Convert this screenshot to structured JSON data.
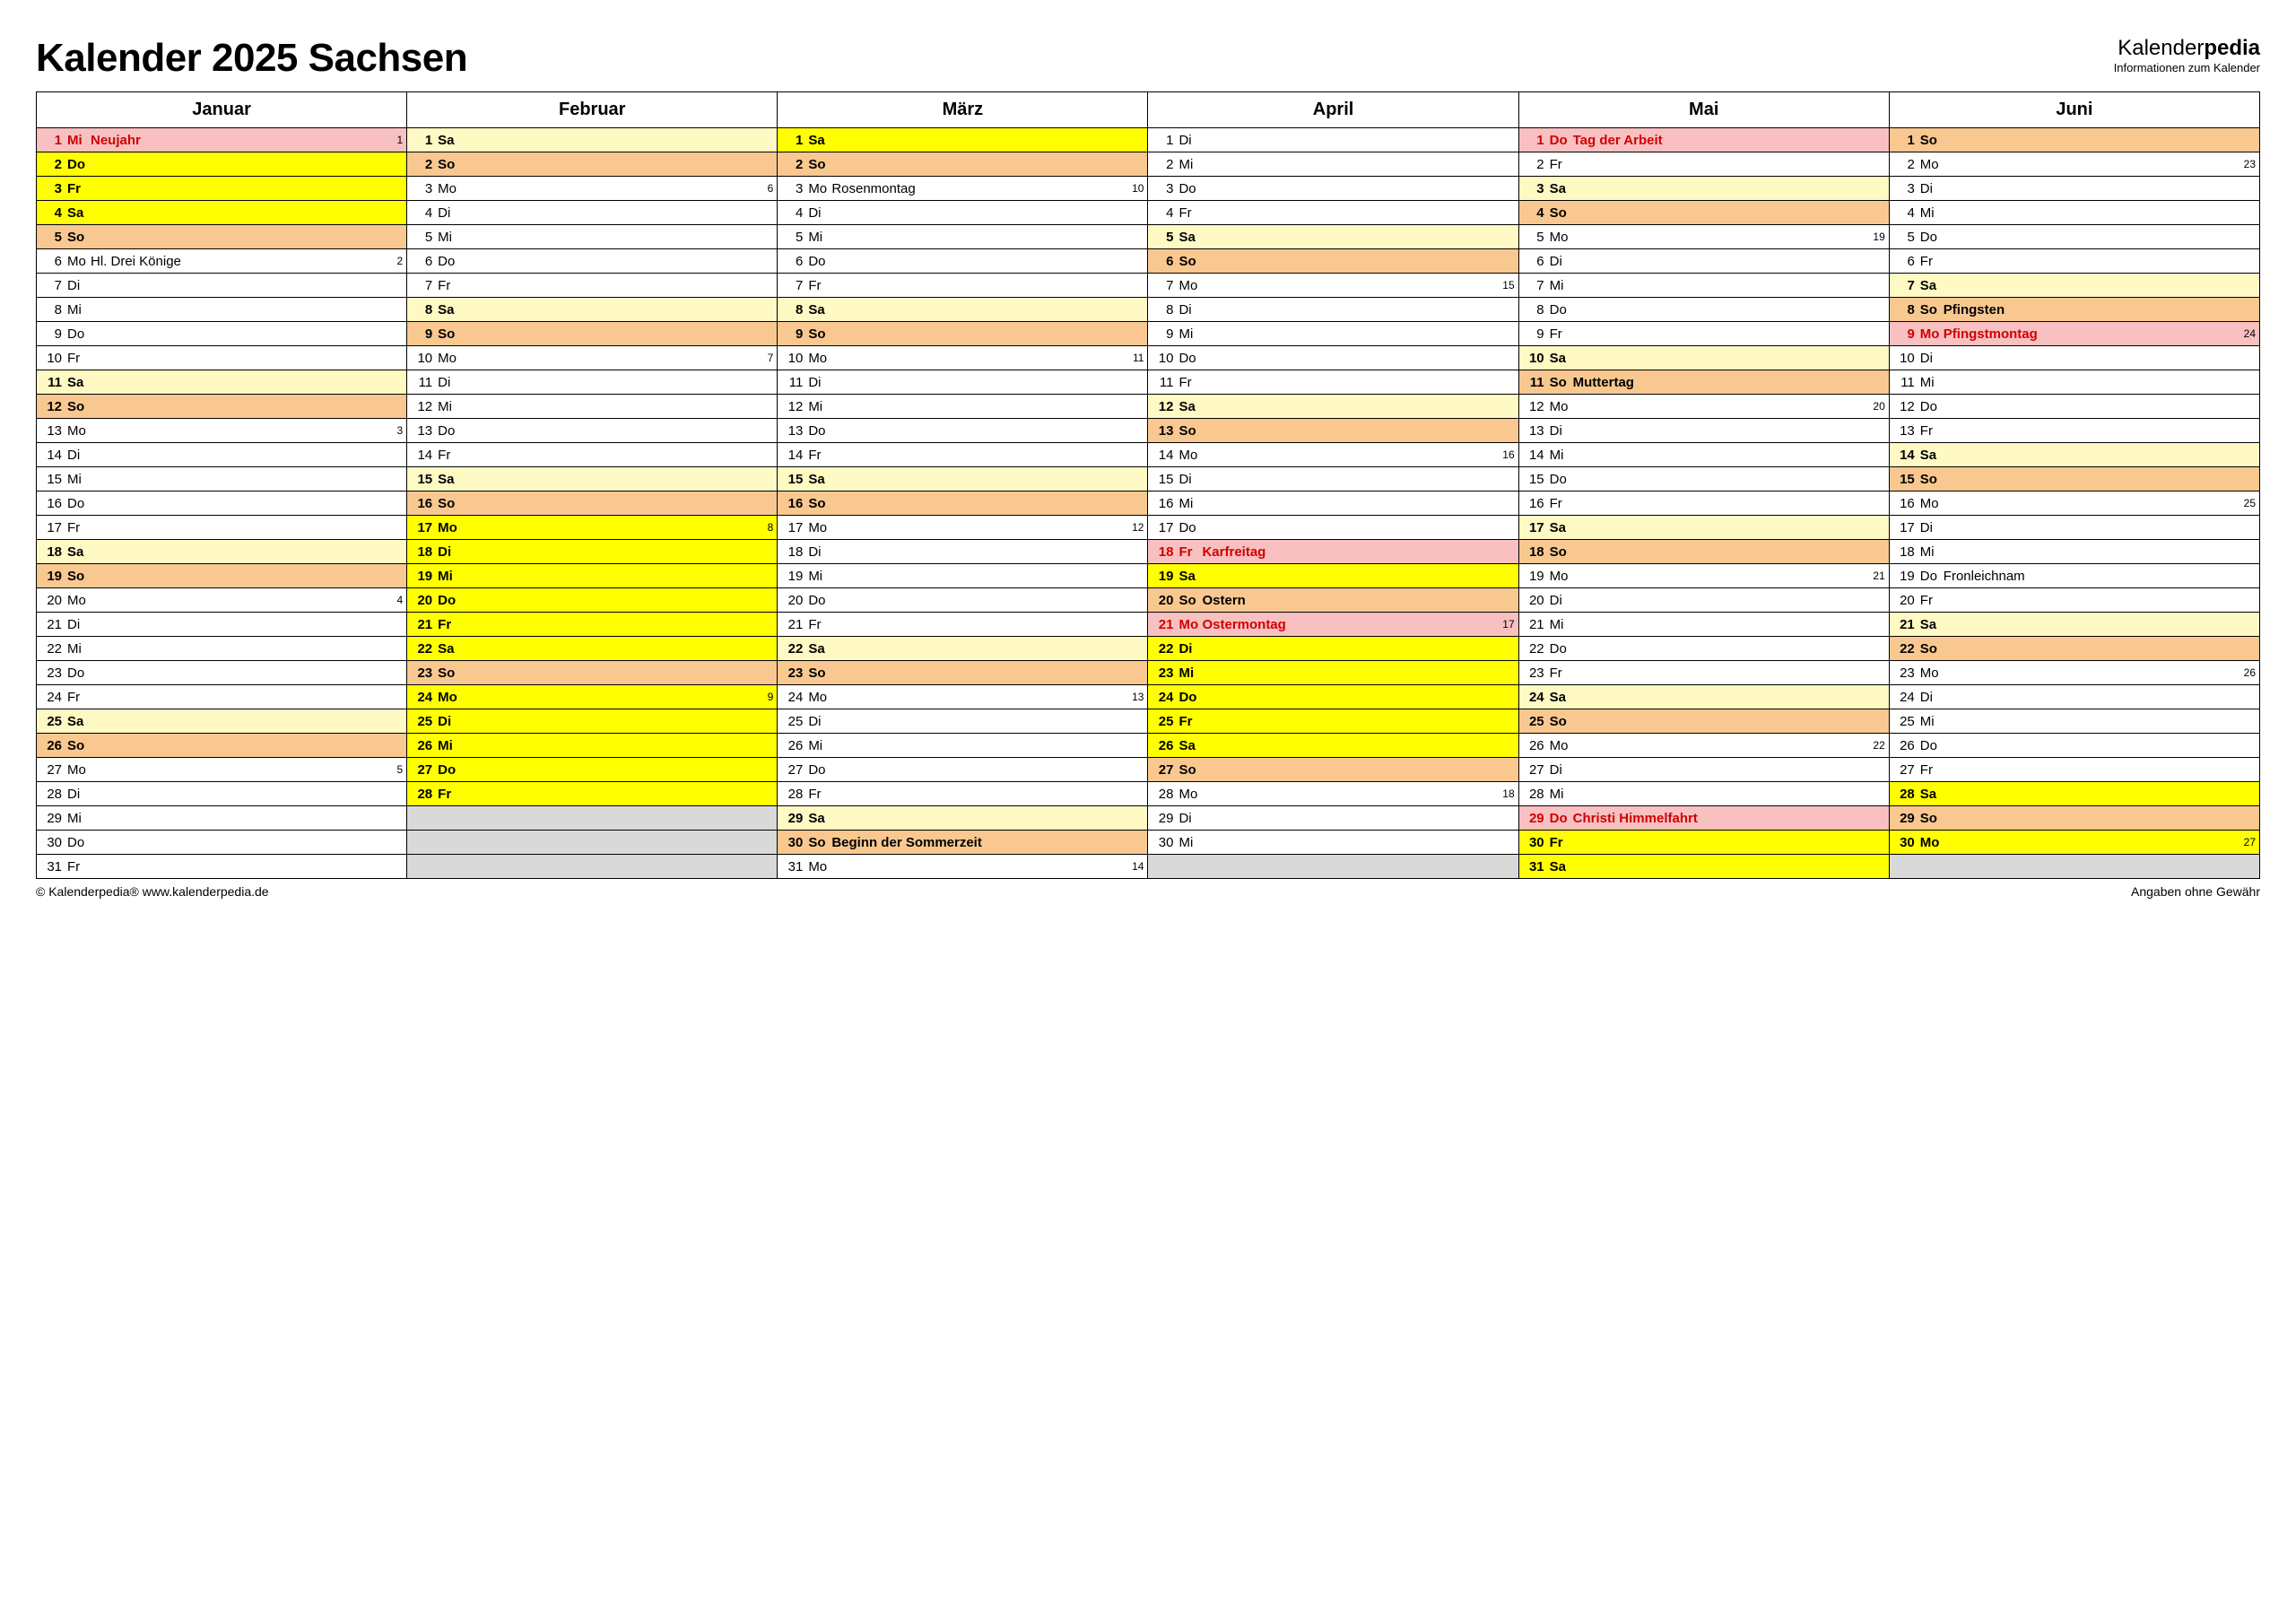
{
  "title": "Kalender 2025 Sachsen",
  "brand_main_a": "Kalender",
  "brand_main_b": "pedia",
  "brand_sub": "Informationen zum Kalender",
  "footer_left": "© Kalenderpedia®   www.kalenderpedia.de",
  "footer_right": "Angaben ohne Gewähr",
  "colors": {
    "holiday": "#f8c0c0",
    "sat": "#fff9c4",
    "sun": "#f8c890",
    "vac": "#ffff00",
    "empty": "#d9d9d9",
    "plain": "#ffffff"
  },
  "months": [
    {
      "name": "Januar",
      "days": [
        {
          "n": 1,
          "d": "Mi",
          "t": "Neujahr",
          "bg": "holiday",
          "s": "red",
          "wk": "1"
        },
        {
          "n": 2,
          "d": "Do",
          "bg": "vac",
          "s": "bold"
        },
        {
          "n": 3,
          "d": "Fr",
          "bg": "vac",
          "s": "bold"
        },
        {
          "n": 4,
          "d": "Sa",
          "bg": "vac",
          "s": "bold"
        },
        {
          "n": 5,
          "d": "So",
          "bg": "sun",
          "s": "bold"
        },
        {
          "n": 6,
          "d": "Mo",
          "t": "Hl. Drei Könige",
          "wk": "2"
        },
        {
          "n": 7,
          "d": "Di"
        },
        {
          "n": 8,
          "d": "Mi"
        },
        {
          "n": 9,
          "d": "Do"
        },
        {
          "n": 10,
          "d": "Fr"
        },
        {
          "n": 11,
          "d": "Sa",
          "bg": "sat",
          "s": "bold"
        },
        {
          "n": 12,
          "d": "So",
          "bg": "sun",
          "s": "bold"
        },
        {
          "n": 13,
          "d": "Mo",
          "wk": "3"
        },
        {
          "n": 14,
          "d": "Di"
        },
        {
          "n": 15,
          "d": "Mi"
        },
        {
          "n": 16,
          "d": "Do"
        },
        {
          "n": 17,
          "d": "Fr"
        },
        {
          "n": 18,
          "d": "Sa",
          "bg": "sat",
          "s": "bold"
        },
        {
          "n": 19,
          "d": "So",
          "bg": "sun",
          "s": "bold"
        },
        {
          "n": 20,
          "d": "Mo",
          "wk": "4"
        },
        {
          "n": 21,
          "d": "Di"
        },
        {
          "n": 22,
          "d": "Mi"
        },
        {
          "n": 23,
          "d": "Do"
        },
        {
          "n": 24,
          "d": "Fr"
        },
        {
          "n": 25,
          "d": "Sa",
          "bg": "sat",
          "s": "bold"
        },
        {
          "n": 26,
          "d": "So",
          "bg": "sun",
          "s": "bold"
        },
        {
          "n": 27,
          "d": "Mo",
          "wk": "5"
        },
        {
          "n": 28,
          "d": "Di"
        },
        {
          "n": 29,
          "d": "Mi"
        },
        {
          "n": 30,
          "d": "Do"
        },
        {
          "n": 31,
          "d": "Fr"
        }
      ]
    },
    {
      "name": "Februar",
      "days": [
        {
          "n": 1,
          "d": "Sa",
          "bg": "sat",
          "s": "bold"
        },
        {
          "n": 2,
          "d": "So",
          "bg": "sun",
          "s": "bold"
        },
        {
          "n": 3,
          "d": "Mo",
          "wk": "6"
        },
        {
          "n": 4,
          "d": "Di"
        },
        {
          "n": 5,
          "d": "Mi"
        },
        {
          "n": 6,
          "d": "Do"
        },
        {
          "n": 7,
          "d": "Fr"
        },
        {
          "n": 8,
          "d": "Sa",
          "bg": "sat",
          "s": "bold"
        },
        {
          "n": 9,
          "d": "So",
          "bg": "sun",
          "s": "bold"
        },
        {
          "n": 10,
          "d": "Mo",
          "wk": "7"
        },
        {
          "n": 11,
          "d": "Di"
        },
        {
          "n": 12,
          "d": "Mi"
        },
        {
          "n": 13,
          "d": "Do"
        },
        {
          "n": 14,
          "d": "Fr"
        },
        {
          "n": 15,
          "d": "Sa",
          "bg": "sat",
          "s": "bold"
        },
        {
          "n": 16,
          "d": "So",
          "bg": "sun",
          "s": "bold"
        },
        {
          "n": 17,
          "d": "Mo",
          "bg": "vac",
          "s": "bold",
          "wk": "8"
        },
        {
          "n": 18,
          "d": "Di",
          "bg": "vac",
          "s": "bold"
        },
        {
          "n": 19,
          "d": "Mi",
          "bg": "vac",
          "s": "bold"
        },
        {
          "n": 20,
          "d": "Do",
          "bg": "vac",
          "s": "bold"
        },
        {
          "n": 21,
          "d": "Fr",
          "bg": "vac",
          "s": "bold"
        },
        {
          "n": 22,
          "d": "Sa",
          "bg": "vac",
          "s": "bold"
        },
        {
          "n": 23,
          "d": "So",
          "bg": "sun",
          "s": "bold"
        },
        {
          "n": 24,
          "d": "Mo",
          "bg": "vac",
          "s": "bold",
          "wk": "9"
        },
        {
          "n": 25,
          "d": "Di",
          "bg": "vac",
          "s": "bold"
        },
        {
          "n": 26,
          "d": "Mi",
          "bg": "vac",
          "s": "bold"
        },
        {
          "n": 27,
          "d": "Do",
          "bg": "vac",
          "s": "bold"
        },
        {
          "n": 28,
          "d": "Fr",
          "bg": "vac",
          "s": "bold"
        },
        {
          "empty": true
        },
        {
          "empty": true
        },
        {
          "empty": true
        }
      ]
    },
    {
      "name": "März",
      "days": [
        {
          "n": 1,
          "d": "Sa",
          "bg": "vac",
          "s": "bold"
        },
        {
          "n": 2,
          "d": "So",
          "bg": "sun",
          "s": "bold"
        },
        {
          "n": 3,
          "d": "Mo",
          "t": "Rosenmontag",
          "wk": "10"
        },
        {
          "n": 4,
          "d": "Di"
        },
        {
          "n": 5,
          "d": "Mi"
        },
        {
          "n": 6,
          "d": "Do"
        },
        {
          "n": 7,
          "d": "Fr"
        },
        {
          "n": 8,
          "d": "Sa",
          "bg": "sat",
          "s": "bold"
        },
        {
          "n": 9,
          "d": "So",
          "bg": "sun",
          "s": "bold"
        },
        {
          "n": 10,
          "d": "Mo",
          "wk": "11"
        },
        {
          "n": 11,
          "d": "Di"
        },
        {
          "n": 12,
          "d": "Mi"
        },
        {
          "n": 13,
          "d": "Do"
        },
        {
          "n": 14,
          "d": "Fr"
        },
        {
          "n": 15,
          "d": "Sa",
          "bg": "sat",
          "s": "bold"
        },
        {
          "n": 16,
          "d": "So",
          "bg": "sun",
          "s": "bold"
        },
        {
          "n": 17,
          "d": "Mo",
          "wk": "12"
        },
        {
          "n": 18,
          "d": "Di"
        },
        {
          "n": 19,
          "d": "Mi"
        },
        {
          "n": 20,
          "d": "Do"
        },
        {
          "n": 21,
          "d": "Fr"
        },
        {
          "n": 22,
          "d": "Sa",
          "bg": "sat",
          "s": "bold"
        },
        {
          "n": 23,
          "d": "So",
          "bg": "sun",
          "s": "bold"
        },
        {
          "n": 24,
          "d": "Mo",
          "wk": "13"
        },
        {
          "n": 25,
          "d": "Di"
        },
        {
          "n": 26,
          "d": "Mi"
        },
        {
          "n": 27,
          "d": "Do"
        },
        {
          "n": 28,
          "d": "Fr"
        },
        {
          "n": 29,
          "d": "Sa",
          "bg": "sat",
          "s": "bold"
        },
        {
          "n": 30,
          "d": "So",
          "t": "Beginn der Sommerzeit",
          "bg": "sun",
          "s": "bold"
        },
        {
          "n": 31,
          "d": "Mo",
          "wk": "14"
        }
      ]
    },
    {
      "name": "April",
      "days": [
        {
          "n": 1,
          "d": "Di"
        },
        {
          "n": 2,
          "d": "Mi"
        },
        {
          "n": 3,
          "d": "Do"
        },
        {
          "n": 4,
          "d": "Fr"
        },
        {
          "n": 5,
          "d": "Sa",
          "bg": "sat",
          "s": "bold"
        },
        {
          "n": 6,
          "d": "So",
          "bg": "sun",
          "s": "bold"
        },
        {
          "n": 7,
          "d": "Mo",
          "wk": "15"
        },
        {
          "n": 8,
          "d": "Di"
        },
        {
          "n": 9,
          "d": "Mi"
        },
        {
          "n": 10,
          "d": "Do"
        },
        {
          "n": 11,
          "d": "Fr"
        },
        {
          "n": 12,
          "d": "Sa",
          "bg": "sat",
          "s": "bold"
        },
        {
          "n": 13,
          "d": "So",
          "bg": "sun",
          "s": "bold"
        },
        {
          "n": 14,
          "d": "Mo",
          "wk": "16"
        },
        {
          "n": 15,
          "d": "Di"
        },
        {
          "n": 16,
          "d": "Mi"
        },
        {
          "n": 17,
          "d": "Do"
        },
        {
          "n": 18,
          "d": "Fr",
          "t": "Karfreitag",
          "bg": "holiday",
          "s": "red"
        },
        {
          "n": 19,
          "d": "Sa",
          "bg": "vac",
          "s": "bold"
        },
        {
          "n": 20,
          "d": "So",
          "t": "Ostern",
          "bg": "sun",
          "s": "bold"
        },
        {
          "n": 21,
          "d": "Mo",
          "t": "Ostermontag",
          "bg": "holiday",
          "s": "red",
          "wk": "17"
        },
        {
          "n": 22,
          "d": "Di",
          "bg": "vac",
          "s": "bold"
        },
        {
          "n": 23,
          "d": "Mi",
          "bg": "vac",
          "s": "bold"
        },
        {
          "n": 24,
          "d": "Do",
          "bg": "vac",
          "s": "bold"
        },
        {
          "n": 25,
          "d": "Fr",
          "bg": "vac",
          "s": "bold"
        },
        {
          "n": 26,
          "d": "Sa",
          "bg": "vac",
          "s": "bold"
        },
        {
          "n": 27,
          "d": "So",
          "bg": "sun",
          "s": "bold"
        },
        {
          "n": 28,
          "d": "Mo",
          "wk": "18"
        },
        {
          "n": 29,
          "d": "Di"
        },
        {
          "n": 30,
          "d": "Mi"
        },
        {
          "empty": true
        }
      ]
    },
    {
      "name": "Mai",
      "days": [
        {
          "n": 1,
          "d": "Do",
          "t": "Tag der Arbeit",
          "bg": "holiday",
          "s": "red"
        },
        {
          "n": 2,
          "d": "Fr"
        },
        {
          "n": 3,
          "d": "Sa",
          "bg": "sat",
          "s": "bold"
        },
        {
          "n": 4,
          "d": "So",
          "bg": "sun",
          "s": "bold"
        },
        {
          "n": 5,
          "d": "Mo",
          "wk": "19"
        },
        {
          "n": 6,
          "d": "Di"
        },
        {
          "n": 7,
          "d": "Mi"
        },
        {
          "n": 8,
          "d": "Do"
        },
        {
          "n": 9,
          "d": "Fr"
        },
        {
          "n": 10,
          "d": "Sa",
          "bg": "sat",
          "s": "bold"
        },
        {
          "n": 11,
          "d": "So",
          "t": "Muttertag",
          "bg": "sun",
          "s": "bold"
        },
        {
          "n": 12,
          "d": "Mo",
          "wk": "20"
        },
        {
          "n": 13,
          "d": "Di"
        },
        {
          "n": 14,
          "d": "Mi"
        },
        {
          "n": 15,
          "d": "Do"
        },
        {
          "n": 16,
          "d": "Fr"
        },
        {
          "n": 17,
          "d": "Sa",
          "bg": "sat",
          "s": "bold"
        },
        {
          "n": 18,
          "d": "So",
          "bg": "sun",
          "s": "bold"
        },
        {
          "n": 19,
          "d": "Mo",
          "wk": "21"
        },
        {
          "n": 20,
          "d": "Di"
        },
        {
          "n": 21,
          "d": "Mi"
        },
        {
          "n": 22,
          "d": "Do"
        },
        {
          "n": 23,
          "d": "Fr"
        },
        {
          "n": 24,
          "d": "Sa",
          "bg": "sat",
          "s": "bold"
        },
        {
          "n": 25,
          "d": "So",
          "bg": "sun",
          "s": "bold"
        },
        {
          "n": 26,
          "d": "Mo",
          "wk": "22"
        },
        {
          "n": 27,
          "d": "Di"
        },
        {
          "n": 28,
          "d": "Mi"
        },
        {
          "n": 29,
          "d": "Do",
          "t": "Christi Himmelfahrt",
          "bg": "holiday",
          "s": "red"
        },
        {
          "n": 30,
          "d": "Fr",
          "bg": "vac",
          "s": "bold"
        },
        {
          "n": 31,
          "d": "Sa",
          "bg": "vac",
          "s": "bold"
        }
      ]
    },
    {
      "name": "Juni",
      "days": [
        {
          "n": 1,
          "d": "So",
          "bg": "sun",
          "s": "bold"
        },
        {
          "n": 2,
          "d": "Mo",
          "wk": "23"
        },
        {
          "n": 3,
          "d": "Di"
        },
        {
          "n": 4,
          "d": "Mi"
        },
        {
          "n": 5,
          "d": "Do"
        },
        {
          "n": 6,
          "d": "Fr"
        },
        {
          "n": 7,
          "d": "Sa",
          "bg": "sat",
          "s": "bold"
        },
        {
          "n": 8,
          "d": "So",
          "t": "Pfingsten",
          "bg": "sun",
          "s": "bold"
        },
        {
          "n": 9,
          "d": "Mo",
          "t": "Pfingstmontag",
          "bg": "holiday",
          "s": "red",
          "wk": "24"
        },
        {
          "n": 10,
          "d": "Di"
        },
        {
          "n": 11,
          "d": "Mi"
        },
        {
          "n": 12,
          "d": "Do"
        },
        {
          "n": 13,
          "d": "Fr"
        },
        {
          "n": 14,
          "d": "Sa",
          "bg": "sat",
          "s": "bold"
        },
        {
          "n": 15,
          "d": "So",
          "bg": "sun",
          "s": "bold"
        },
        {
          "n": 16,
          "d": "Mo",
          "wk": "25"
        },
        {
          "n": 17,
          "d": "Di"
        },
        {
          "n": 18,
          "d": "Mi"
        },
        {
          "n": 19,
          "d": "Do",
          "t": "Fronleichnam"
        },
        {
          "n": 20,
          "d": "Fr"
        },
        {
          "n": 21,
          "d": "Sa",
          "bg": "sat",
          "s": "bold"
        },
        {
          "n": 22,
          "d": "So",
          "bg": "sun",
          "s": "bold"
        },
        {
          "n": 23,
          "d": "Mo",
          "wk": "26"
        },
        {
          "n": 24,
          "d": "Di"
        },
        {
          "n": 25,
          "d": "Mi"
        },
        {
          "n": 26,
          "d": "Do"
        },
        {
          "n": 27,
          "d": "Fr"
        },
        {
          "n": 28,
          "d": "Sa",
          "bg": "vac",
          "s": "bold"
        },
        {
          "n": 29,
          "d": "So",
          "bg": "sun",
          "s": "bold"
        },
        {
          "n": 30,
          "d": "Mo",
          "bg": "vac",
          "s": "bold",
          "wk": "27"
        },
        {
          "empty": true
        }
      ]
    }
  ]
}
